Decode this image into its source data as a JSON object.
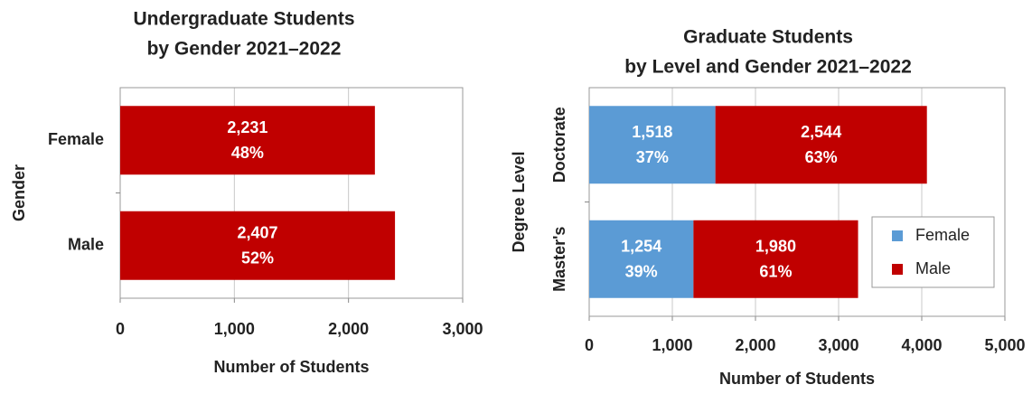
{
  "chart_data": [
    {
      "type": "bar",
      "orientation": "horizontal",
      "title": [
        "Undergraduate Students",
        "by Gender 2021–2022"
      ],
      "xlabel": "Number of Students",
      "ylabel": "Gender",
      "categories": [
        "Female",
        "Male"
      ],
      "series": [
        {
          "name": null,
          "color": "#c00000",
          "values": [
            2231,
            2407
          ],
          "value_labels": [
            "2,231",
            "2,407"
          ],
          "percent_labels": [
            "48%",
            "52%"
          ]
        }
      ],
      "xlim": [
        0,
        3000
      ],
      "xticks": [
        0,
        {
          "value": 1000,
          "label": "1,000"
        },
        {
          "value": 2000,
          "label": "2,000"
        },
        {
          "value": 3000,
          "label": "3,000"
        }
      ],
      "grid": true
    },
    {
      "type": "stacked_bar",
      "orientation": "horizontal",
      "title": [
        "Graduate Students",
        "by Level and Gender 2021–2022"
      ],
      "xlabel": "Number of Students",
      "ylabel": "Degree Level",
      "categories": [
        "Doctorate",
        "Master's"
      ],
      "series": [
        {
          "name": "Female",
          "color": "#5b9bd5",
          "values": [
            1518,
            1254
          ],
          "value_labels": [
            "1,518",
            "1,254"
          ],
          "percent_labels": [
            "37%",
            "39%"
          ]
        },
        {
          "name": "Male",
          "color": "#c00000",
          "values": [
            2544,
            1980
          ],
          "value_labels": [
            "2,544",
            "1,980"
          ],
          "percent_labels": [
            "63%",
            "61%"
          ]
        }
      ],
      "xlim": [
        0,
        5000
      ],
      "xticks": [
        0,
        {
          "value": 1000,
          "label": "1,000"
        },
        {
          "value": 2000,
          "label": "2,000"
        },
        {
          "value": 3000,
          "label": "3,000"
        },
        {
          "value": 4000,
          "label": "4,000"
        },
        {
          "value": 5000,
          "label": "5,000"
        }
      ],
      "grid": true,
      "legend": "lower right"
    }
  ]
}
